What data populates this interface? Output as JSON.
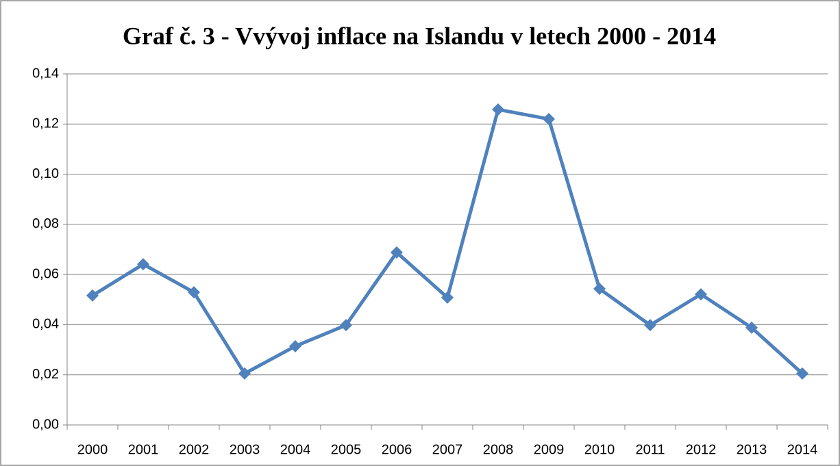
{
  "chart_data": {
    "type": "line",
    "title": "Graf č. 3 - Vvývoj inflace na Islandu v letech 2000 - 2014",
    "categories": [
      "2000",
      "2001",
      "2002",
      "2003",
      "2004",
      "2005",
      "2006",
      "2007",
      "2008",
      "2009",
      "2010",
      "2011",
      "2012",
      "2013",
      "2014"
    ],
    "series": [
      {
        "name": "Inflace",
        "color": "#4f81bd",
        "values": [
          0.0516,
          0.0641,
          0.0529,
          0.0205,
          0.0314,
          0.0398,
          0.0688,
          0.0508,
          0.1258,
          0.122,
          0.0543,
          0.0398,
          0.0521,
          0.0388,
          0.0205
        ]
      }
    ],
    "ylim": [
      0,
      0.14
    ],
    "yticks": [
      {
        "value": 0,
        "label": "0,00"
      },
      {
        "value": 0.02,
        "label": "0,02"
      },
      {
        "value": 0.04,
        "label": "0,04"
      },
      {
        "value": 0.06,
        "label": "0,06"
      },
      {
        "value": 0.08,
        "label": "0,08"
      },
      {
        "value": 0.1,
        "label": "0,10"
      },
      {
        "value": 0.12,
        "label": "0,12"
      },
      {
        "value": 0.14,
        "label": "0,14"
      }
    ],
    "grid": true
  }
}
